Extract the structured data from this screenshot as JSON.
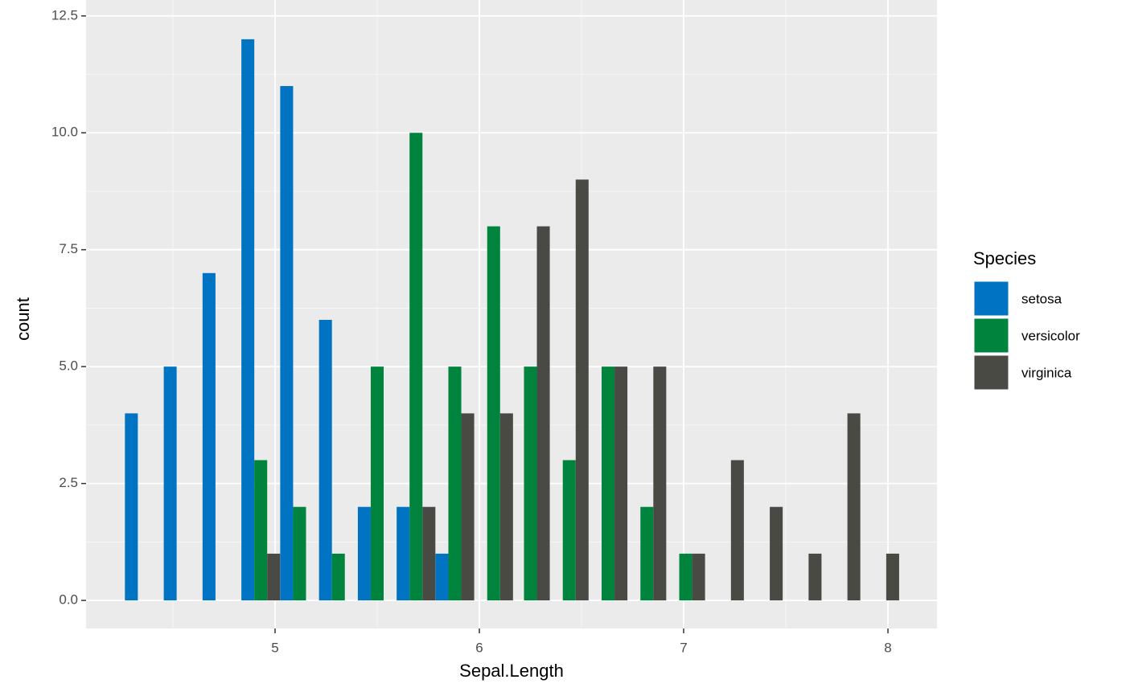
{
  "chart_data": {
    "type": "dodged-histogram",
    "x_label": "Sepal.Length",
    "y_label": "count",
    "x": [
      4.36,
      4.55,
      4.74,
      4.93,
      5.12,
      5.31,
      5.5,
      5.69,
      5.88,
      6.07,
      6.25,
      6.44,
      6.63,
      6.82,
      7.01,
      7.2,
      7.39,
      7.58,
      7.77,
      7.96
    ],
    "series": [
      {
        "name": "setosa",
        "color": "#0073c2",
        "values": [
          4,
          5,
          7,
          12,
          11,
          6,
          2,
          2,
          1,
          0,
          0,
          0,
          0,
          0,
          0,
          0,
          0,
          0,
          0,
          0
        ]
      },
      {
        "name": "versicolor",
        "color": "#00843d",
        "values": [
          0,
          0,
          0,
          3,
          2,
          1,
          5,
          10,
          5,
          8,
          5,
          3,
          5,
          2,
          1,
          0,
          0,
          0,
          0,
          0
        ]
      },
      {
        "name": "virginica",
        "color": "#4a4a45",
        "values": [
          0,
          0,
          0,
          1,
          0,
          0,
          0,
          2,
          4,
          4,
          8,
          9,
          5,
          5,
          1,
          3,
          2,
          1,
          4,
          1
        ]
      }
    ],
    "xlim": [
      4.075,
      8.24
    ],
    "xticks": [
      5,
      6,
      7,
      8
    ],
    "ylim": [
      -0.6,
      12.84
    ],
    "yticks": [
      {
        "value": 0,
        "label": "0.0"
      },
      {
        "value": 2.5,
        "label": "2.5"
      },
      {
        "value": 5,
        "label": "5.0"
      },
      {
        "value": 7.5,
        "label": "7.5"
      },
      {
        "value": 10,
        "label": "10.0"
      },
      {
        "value": 12.5,
        "label": "12.5"
      }
    ],
    "grid": true,
    "legend_title": "Species",
    "legend_position": "right"
  }
}
